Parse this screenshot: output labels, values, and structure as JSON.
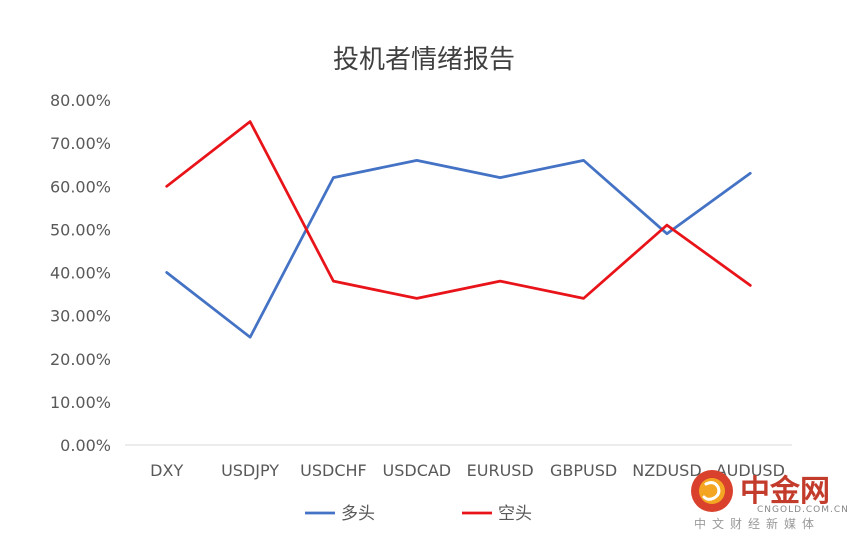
{
  "chart_data": {
    "type": "line",
    "title": "投机者情绪报告",
    "categories": [
      "DXY",
      "USDJPY",
      "USDCHF",
      "USDCAD",
      "EURUSD",
      "GBPUSD",
      "NZDUSD",
      "AUDUSD"
    ],
    "series": [
      {
        "name": "多头",
        "color": "#4472c4",
        "values": [
          40,
          25,
          62,
          66,
          62,
          66,
          49,
          63
        ]
      },
      {
        "name": "空头",
        "color": "#e8141a",
        "values": [
          60,
          75,
          38,
          34,
          38,
          34,
          51,
          37
        ]
      }
    ],
    "ylim": [
      0,
      80
    ],
    "yticks": [
      "0.00%",
      "10.00%",
      "20.00%",
      "30.00%",
      "40.00%",
      "50.00%",
      "60.00%",
      "70.00%",
      "80.00%"
    ],
    "grid": false,
    "legend": "bottom"
  },
  "watermark": {
    "brand": "中金网",
    "site": "CNGOLD.COM.CN",
    "tagline": "中文财经新媒体",
    "icon": "cngold-logo-icon"
  }
}
